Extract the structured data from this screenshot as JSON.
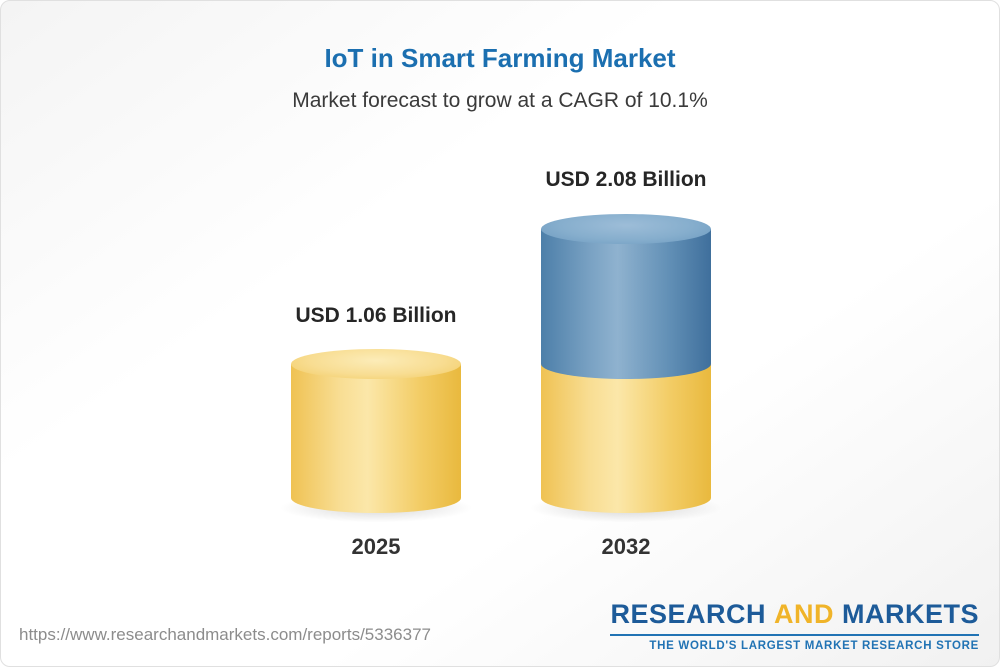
{
  "chart_data": {
    "type": "bar",
    "title": "IoT in Smart Farming Market",
    "subtitle": "Market forecast to grow at a CAGR of 10.1%",
    "categories": [
      "2025",
      "2032"
    ],
    "values": [
      1.06,
      2.08
    ],
    "unit": "USD Billion",
    "ylim": [
      0,
      2.5
    ],
    "grid": false,
    "legend": "none",
    "bars": [
      {
        "category": "2025",
        "value": 1.06,
        "label": "USD 1.06 Billion",
        "segment_colors": [
          "#f3cd67"
        ]
      },
      {
        "category": "2032",
        "value": 2.08,
        "label": "USD 2.08 Billion",
        "segment_colors": [
          "#6290b6",
          "#f3cd67"
        ]
      }
    ]
  },
  "colors": {
    "title_blue": "#1b6fb0",
    "subtitle_gray": "#3a3a3a",
    "bar_yellow": "#f3cd67",
    "bar_yellow_highlight": "#fbe7a9",
    "bar_blue": "#6290b6",
    "bar_blue_highlight": "#8fb2cf",
    "logo_navy": "#1d5b99",
    "logo_gold": "#f0b429",
    "tagline_blue": "#2173b4",
    "url_gray": "#8c8c8c"
  },
  "footer": {
    "url": "https://www.researchandmarkets.com/reports/5336377",
    "logo": {
      "word1": "RESEARCH",
      "word2": "AND",
      "word3": "MARKETS",
      "tagline": "THE WORLD'S LARGEST MARKET RESEARCH STORE"
    }
  }
}
